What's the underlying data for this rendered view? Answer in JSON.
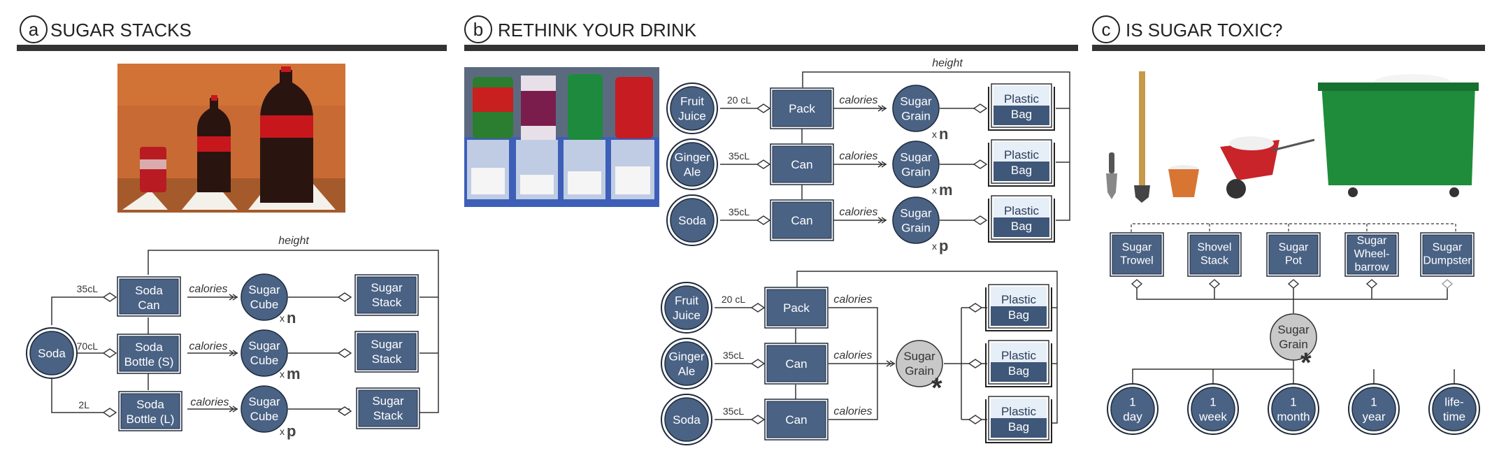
{
  "panels": {
    "a": {
      "letter": "a",
      "title": "SUGAR STACKS"
    },
    "b": {
      "letter": "b",
      "title": "RETHINK YOUR DRINK"
    },
    "c": {
      "letter": "c",
      "title": "IS SUGAR TOXIC?"
    }
  },
  "diagram_a": {
    "source": "Soda",
    "height_label": "height",
    "calories_label": "calories",
    "rows": [
      {
        "volume": "35cL",
        "container": [
          "Soda",
          "Can"
        ],
        "unit": [
          "Sugar",
          "Cube"
        ],
        "mult_prefix": "x",
        "mult": "n",
        "result": [
          "Sugar",
          "Stack"
        ]
      },
      {
        "volume": "70cL",
        "container": [
          "Soda",
          "Bottle (S)"
        ],
        "unit": [
          "Sugar",
          "Cube"
        ],
        "mult_prefix": "x",
        "mult": "m",
        "result": [
          "Sugar",
          "Stack"
        ]
      },
      {
        "volume": "2L",
        "container": [
          "Soda",
          "Bottle (L)"
        ],
        "unit": [
          "Sugar",
          "Cube"
        ],
        "mult_prefix": "x",
        "mult": "p",
        "result": [
          "Sugar",
          "Stack"
        ]
      }
    ]
  },
  "diagram_b_top": {
    "height_label": "height",
    "calories_label": "calories",
    "rows": [
      {
        "source": [
          "Fruit",
          "Juice"
        ],
        "volume": "20 cL",
        "container": "Pack",
        "unit": [
          "Sugar",
          "Grain"
        ],
        "mult_prefix": "x",
        "mult": "n",
        "result": [
          "Plastic",
          "Bag"
        ]
      },
      {
        "source": [
          "Ginger",
          "Ale"
        ],
        "volume": "35cL",
        "container": "Can",
        "unit": [
          "Sugar",
          "Grain"
        ],
        "mult_prefix": "x",
        "mult": "m",
        "result": [
          "Plastic",
          "Bag"
        ]
      },
      {
        "source": [
          "Soda"
        ],
        "volume": "35cL",
        "container": "Can",
        "unit": [
          "Sugar",
          "Grain"
        ],
        "mult_prefix": "x",
        "mult": "p",
        "result": [
          "Plastic",
          "Bag"
        ]
      }
    ]
  },
  "diagram_b_bottom": {
    "calories_label": "calories",
    "unit": [
      "Sugar",
      "Grain"
    ],
    "star": "*",
    "rows": [
      {
        "source": [
          "Fruit",
          "Juice"
        ],
        "volume": "20 cL",
        "container": "Pack",
        "result": [
          "Plastic",
          "Bag"
        ]
      },
      {
        "source": [
          "Ginger",
          "Ale"
        ],
        "volume": "35cL",
        "container": "Can",
        "result": [
          "Plastic",
          "Bag"
        ]
      },
      {
        "source": [
          "Soda"
        ],
        "volume": "35cL",
        "container": "Can",
        "result": [
          "Plastic",
          "Bag"
        ]
      }
    ]
  },
  "diagram_c": {
    "items": [
      [
        "Sugar",
        "Trowel"
      ],
      [
        "Shovel",
        "Stack"
      ],
      [
        "Sugar",
        "Pot"
      ],
      [
        "Sugar",
        "Wheel-",
        "barrow"
      ],
      [
        "Sugar",
        "Dumpster"
      ]
    ],
    "unit": [
      "Sugar",
      "Grain"
    ],
    "star": "*",
    "times": [
      [
        "1",
        "day"
      ],
      [
        "1",
        "week"
      ],
      [
        "1",
        "month"
      ],
      [
        "1",
        "year"
      ],
      [
        "life-",
        "time"
      ]
    ]
  },
  "colors": {
    "node_fill": "#4a6284",
    "node_stroke": "#1f2b3d",
    "grey_node": "#c8c8c8",
    "bar": "#333333",
    "water": "#3f5778",
    "bag_top": "#e6eef8"
  }
}
